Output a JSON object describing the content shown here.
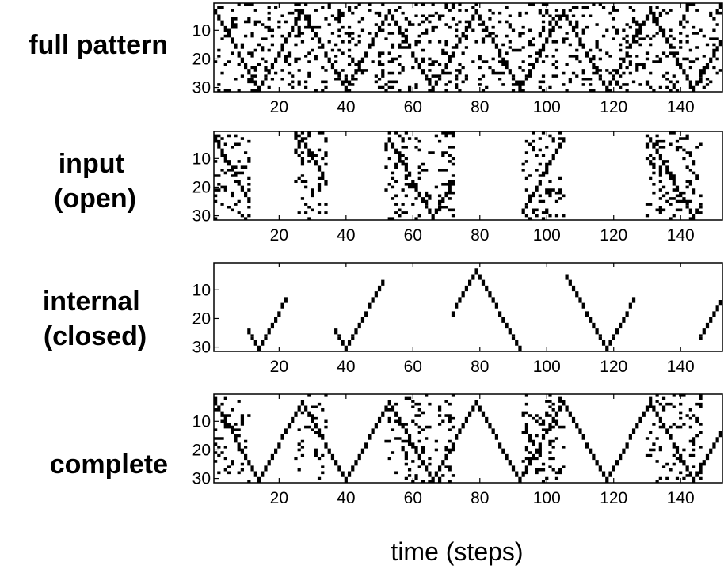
{
  "chart_data": {
    "type": "heatmap",
    "xlabel": "time (steps)",
    "xlim": [
      1,
      152
    ],
    "ylim": [
      1,
      31
    ],
    "x_ticks": [
      20,
      40,
      60,
      80,
      100,
      120,
      140
    ],
    "y_ticks": [
      10,
      20,
      30
    ],
    "colors": {
      "active": "#000000",
      "inactive": "#ffffff",
      "axes": "#000000"
    },
    "pattern": {
      "description_of_trace": "triangle wave of neuron index vs time",
      "vertices": [
        [
          1,
          3
        ],
        [
          14,
          30
        ],
        [
          27,
          3
        ],
        [
          40,
          30
        ],
        [
          53,
          3
        ],
        [
          66,
          30
        ],
        [
          79,
          3
        ],
        [
          92,
          30
        ],
        [
          105,
          3
        ],
        [
          118,
          30
        ],
        [
          131,
          3
        ],
        [
          144,
          30
        ],
        [
          152,
          14
        ]
      ]
    },
    "panels": [
      {
        "id": "full",
        "label_lines": [
          "full pattern"
        ],
        "trace_segments": [
          [
            1,
            152
          ]
        ],
        "noise_segments": [
          [
            1,
            152
          ]
        ],
        "noise_density": 0.16
      },
      {
        "id": "input",
        "label_lines": [
          "input",
          "(open)"
        ],
        "trace_segments": [
          [
            1,
            11
          ],
          [
            25,
            34
          ],
          [
            52,
            72
          ],
          [
            93,
            105
          ],
          [
            130,
            146
          ]
        ],
        "noise_segments": [
          [
            1,
            11
          ],
          [
            25,
            34
          ],
          [
            52,
            72
          ],
          [
            93,
            105
          ],
          [
            130,
            146
          ]
        ],
        "noise_density": 0.16
      },
      {
        "id": "internal",
        "label_lines": [
          "internal",
          "(closed)"
        ],
        "trace_segments": [
          [
            11,
            22
          ],
          [
            37,
            51
          ],
          [
            72,
            92
          ],
          [
            106,
            126
          ],
          [
            146,
            152
          ]
        ],
        "noise_segments": [],
        "noise_density": 0
      },
      {
        "id": "complete",
        "label_lines": [
          "complete"
        ],
        "trace_segments": [
          [
            1,
            152
          ]
        ],
        "noise_segments": [
          [
            1,
            11
          ],
          [
            25,
            34
          ],
          [
            52,
            72
          ],
          [
            93,
            105
          ],
          [
            130,
            146
          ]
        ],
        "noise_density": 0.16
      }
    ]
  }
}
